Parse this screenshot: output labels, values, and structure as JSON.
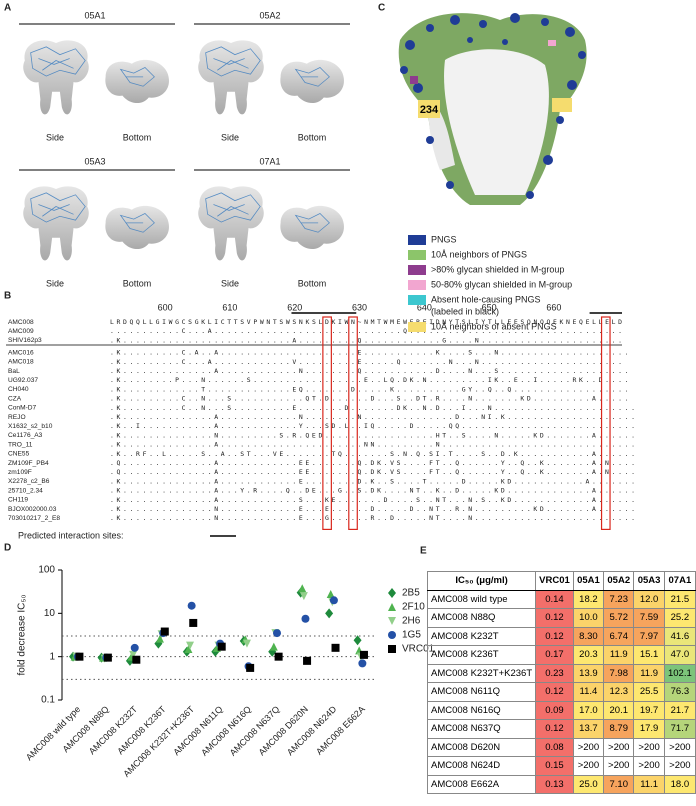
{
  "panel_a": {
    "label": "A",
    "items": [
      {
        "title": "05A1",
        "views": [
          "Side",
          "Bottom"
        ]
      },
      {
        "title": "05A2",
        "views": [
          "Side",
          "Bottom"
        ]
      },
      {
        "title": "05A3",
        "views": [
          "Side",
          "Bottom"
        ]
      },
      {
        "title": "07A1",
        "views": [
          "Side",
          "Bottom"
        ]
      }
    ]
  },
  "panel_b": {
    "label": "B",
    "positions": [
      600,
      610,
      620,
      630,
      640,
      650,
      660
    ],
    "names": [
      "AMC008",
      "AMC009",
      "SHIV162p3",
      "AMC016",
      "AMC018",
      "BaL",
      "UG92.037",
      "CH040",
      "CZA",
      "ConM-D7",
      "REJO",
      "X1632_s2_b10",
      "Ce1176_A3",
      "TRO_11",
      "CNE55",
      "ZM109F_PB4",
      "zm109F",
      "X2278_c2_B6",
      "25710_2.34",
      "CH119",
      "BJOX002000.03",
      "703010217_2_E8"
    ],
    "sequences": [
      "LRDQQLLGIWGCSGKLICTTSVPWNTSWSNKSLDKIWN~NMTWMEWEREIDNYTSLIYTLLEESQNQQEKNEQELLELD",
      "...........C...A.............................Q.................................",
      ".K..........................A.........Q............G....N......................",
      ".K.........C.A..A.....................E...........K....S...N....................",
      ".K.........C...A............V.........E.....Q.......N...N......................",
      ".K..............A............N........Q...........D....N...S....................",
      ".K........P...N......S.................E..LQ.DK.N.........IK..E..I.....RK..D....",
      ".K............T.............EQ.......D.....K..........GY..Q..Q..................",
      ".K.........C..N...S...........QT.D......D...S..DT.R....N.......KD.........A.....",
      ".K.........C..N...S.........E.......D.......DK..N.D...I...N......................",
      ".K..............A............N........N..............D...NI.K....................",
      ".K..I...........A............Y...SD.L..IQ.....D.....QQ...........................",
      ".K..............N.........S.R.QED.................HT..S....N.....KD.......A......",
      ".K..............A......................NN.........N..............................",
      ".K..RF..L.....S..A..ST...VE.......TQ.......S.N.Q.SI.T....S..D.K...........A......",
      ".Q..............A............EE.......Q.DK.VS....FT..Q......Y..Q..K.......A.N....",
      ".Q..............A............EE.......Q.DK.VS....FT..Q......Y..Q..K.......A.N....",
      ".K..............A............E........D.K..S....T.....D.....KD...........A.......",
      ".K..............A...Y.R....Q..DE...G..S.DK....NT..K..D.....KD.............A......",
      ".K..............A............S...KE.......D....S..NT...N.S..KD............A......",
      ".K..............N............E...E......D.....D..NT..R.N.........KD.......A......",
      ".K..............N............E...G......R..D.....NT....N........................."
    ],
    "footer": "Predicted interaction sites:"
  },
  "panel_c": {
    "label": "C",
    "site_label": "234",
    "legend": [
      {
        "color": "#1f3c96",
        "label": "PNGS"
      },
      {
        "color": "#8cc56a",
        "label": "10Å neighbors of PNGS"
      },
      {
        "color": "#8e3c8e",
        "label": ">80% glycan shielded in M-group"
      },
      {
        "color": "#f2a6d0",
        "label": "50-80% glycan shielded in M-group"
      },
      {
        "color": "#3cc7cf",
        "label": "Absent hole-causing PNGS",
        "sublabel": "(labeled in black)"
      },
      {
        "color": "#f5dc6e",
        "label": "10Å neighbors of absent PNGS"
      }
    ]
  },
  "chart_data": {
    "type": "scatter",
    "label": "D",
    "ylabel": "fold decrease IC₅₀",
    "log_scale": true,
    "ylim": [
      0.1,
      100
    ],
    "yticks": [
      0.1,
      1,
      10,
      100
    ],
    "hlines": [
      0.3,
      1,
      3
    ],
    "categories": [
      "AMC008 wild type",
      "AMC008 N88Q",
      "AMC008 K232T",
      "AMC008 K236T",
      "AMC008 K232T+K236T",
      "AMC008 N611Q",
      "AMC008 N616Q",
      "AMC008 N637Q",
      "AMC008 D620N",
      "AMC008 N624D",
      "AMC008 E662A"
    ],
    "series": [
      {
        "name": "2B5",
        "color": "#1e8a3c",
        "marker": "diamond",
        "values": [
          1,
          0.95,
          0.8,
          2.0,
          1.3,
          1.3,
          2.3,
          1.3,
          30,
          10,
          2.4
        ]
      },
      {
        "name": "2F10",
        "color": "#4fb34f",
        "marker": "triangle",
        "values": [
          1,
          0.95,
          1.0,
          2.6,
          1.5,
          1.6,
          2.5,
          1.7,
          38,
          28,
          1.4
        ]
      },
      {
        "name": "2H6",
        "color": "#92cf8a",
        "marker": "triangle-down",
        "values": [
          1,
          0.9,
          1.1,
          3.3,
          1.8,
          1.8,
          2.0,
          3.5,
          25,
          18,
          1.0
        ]
      },
      {
        "name": "1G5",
        "color": "#2451a6",
        "marker": "circle",
        "values": [
          1,
          0.95,
          1.6,
          3.5,
          15,
          2.0,
          0.6,
          3.5,
          7.5,
          20,
          0.7
        ]
      },
      {
        "name": "VRC01",
        "color": "#000000",
        "marker": "square",
        "values": [
          1,
          0.95,
          0.85,
          3.8,
          6,
          1.7,
          0.55,
          1.0,
          0.8,
          1.6,
          1.1
        ]
      }
    ]
  },
  "panel_e": {
    "label": "E",
    "header": [
      "IC₅₀ (μg/ml)",
      "VRC01",
      "05A1",
      "05A2",
      "05A3",
      "07A1"
    ],
    "rows": [
      [
        "AMC008 wild type",
        "0.14",
        "18.2",
        "7.23",
        "12.0",
        "21.5"
      ],
      [
        "AMC008 N88Q",
        "0.12",
        "10.0",
        "5.72",
        "7.59",
        "25.2"
      ],
      [
        "AMC008 K232T",
        "0.12",
        "8.30",
        "6.74",
        "7.97",
        "41.6"
      ],
      [
        "AMC008 K236T",
        "0.17",
        "20.3",
        "11.9",
        "15.1",
        "47.0"
      ],
      [
        "AMC008 K232T+K236T",
        "0.23",
        "13.9",
        "7.98",
        "11.9",
        "102.1"
      ],
      [
        "AMC008 N611Q",
        "0.12",
        "11.4",
        "12.3",
        "25.5",
        "76.3"
      ],
      [
        "AMC008 N616Q",
        "0.09",
        "17.0",
        "20.1",
        "19.7",
        "21.7"
      ],
      [
        "AMC008 N637Q",
        "0.12",
        "13.7",
        "8.79",
        "17.9",
        "71.7"
      ],
      [
        "AMC008 D620N",
        "0.08",
        ">200",
        ">200",
        ">200",
        ">200"
      ],
      [
        "AMC008 N624D",
        "0.15",
        ">200",
        ">200",
        ">200",
        ">200"
      ],
      [
        "AMC008 E662A",
        "0.13",
        "25.0",
        "7.10",
        "11.1",
        "18.0"
      ]
    ]
  }
}
